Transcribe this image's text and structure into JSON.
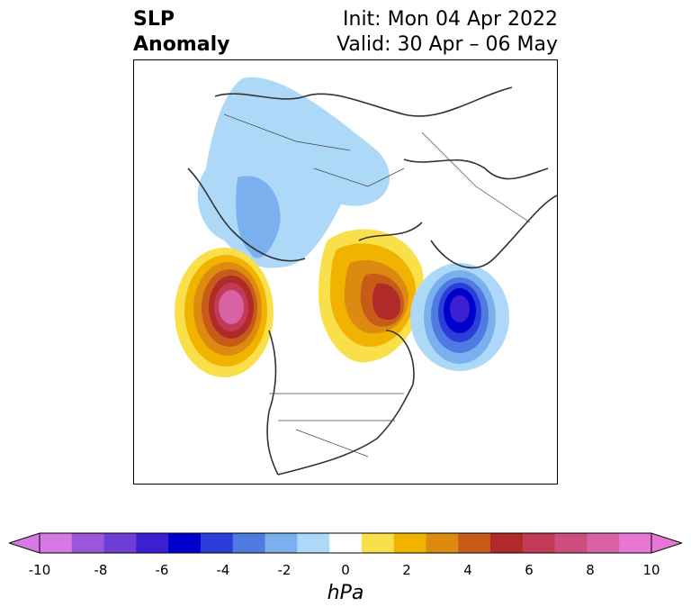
{
  "title": {
    "left_line1": "SLP",
    "left_line2": "Anomaly",
    "right_line1": "Init: Mon 04 Apr 2022",
    "right_line2": "Valid: 30 Apr – 06 May"
  },
  "colorbar": {
    "units": "hPa",
    "levels": [
      -10,
      -9,
      -8,
      -7,
      -6,
      -5,
      -4,
      -3,
      -2,
      -1,
      1,
      2,
      3,
      4,
      5,
      6,
      7,
      8,
      9,
      10
    ],
    "colors": [
      "#d877e6",
      "#9d55d9",
      "#6d3fd6",
      "#3b1fd0",
      "#0000cc",
      "#2b3fd8",
      "#4f7be0",
      "#7ab0ee",
      "#aed8f7",
      "#ffffff",
      "#f9e04a",
      "#f0b400",
      "#dd8b10",
      "#c75c18",
      "#b02a2a",
      "#c23a55",
      "#cc4e7d",
      "#d862a6",
      "#e777d4"
    ],
    "extend_min_color": "#d877e6",
    "extend_max_color": "#e777d4",
    "tick_labels": [
      "-10",
      "-8",
      "-6",
      "-4",
      "-2",
      "0",
      "2",
      "4",
      "6",
      "8",
      "10"
    ]
  },
  "map": {
    "projection": "north-polar-stereographic",
    "region": "Northern Hemisphere (North America / Arctic / Eurasia)",
    "features": [
      {
        "name": "negative-anomaly-eurasia",
        "min_hPa": -4
      },
      {
        "name": "positive-anomaly-north-pacific",
        "max_hPa": 9
      },
      {
        "name": "positive-anomaly-greenland-arctic",
        "max_hPa": 7
      },
      {
        "name": "negative-anomaly-north-atlantic",
        "min_hPa": -6
      }
    ]
  }
}
